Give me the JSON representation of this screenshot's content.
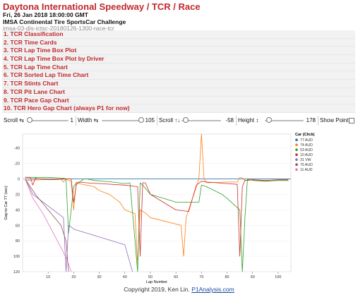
{
  "header": {
    "title": "Daytona International Speedway / TCR / Race",
    "date": "Fri, 26 Jan 2018 18:00:00 GMT",
    "series": "IMSA Continental Tire SportsCar Challenge",
    "session_id": "imsa-03-dis-ictsc-20180126-1300-race-tcr"
  },
  "menu": [
    "1. TCR Classification",
    "2. TCR Time Cards",
    "3. TCR Lap Time Box Plot",
    "4. TCR Lap Time Box Plot by Driver",
    "5. TCR Lap Time Chart",
    "6. TCR Sorted Lap Time Chart",
    "7. TCR Stints Chart",
    "8. TCR Pit Lane Chart",
    "9. TCR Pace Gap Chart",
    "10. TCR Hero Gap Chart (always P1 for now)"
  ],
  "controls": {
    "scroll_h_label": "Scroll ⇆",
    "scroll_h_value": "1",
    "width_label": "Width ⇆",
    "width_value": "105",
    "scroll_v_label": "Scroll ↑↓",
    "scroll_v_value": "-58",
    "height_label": "Height ↕",
    "height_value": "178",
    "show_points_label": "Show Points",
    "show_points_checked": false
  },
  "chart_data": {
    "type": "line",
    "xlabel": "Lap Number",
    "ylabel": "Gap to Car 77 (sec)",
    "xlim": [
      0,
      105
    ],
    "ylim": [
      -58,
      120
    ],
    "x_ticks": [
      10,
      20,
      30,
      40,
      50,
      60,
      70,
      80,
      90,
      100
    ],
    "y_ticks": [
      -40,
      -20,
      0,
      20,
      40,
      60,
      80,
      100,
      120
    ],
    "legend_title": "Car (Click)",
    "legend_position": "top-right",
    "series": [
      {
        "name": "77 AUD",
        "color": "#1f77b4",
        "x": [
          1,
          105
        ],
        "y": [
          0,
          0
        ]
      },
      {
        "name": "74 AUD",
        "color": "#ff7f0e",
        "x": [
          1,
          8,
          15,
          16,
          17,
          18,
          19,
          20,
          21,
          22,
          28,
          30,
          34,
          36,
          38,
          40,
          44,
          45,
          46,
          47,
          48,
          50,
          56,
          62,
          63,
          64,
          68,
          69,
          70,
          71,
          72,
          80,
          84,
          85,
          86,
          87,
          88,
          90,
          95,
          100,
          104
        ],
        "y": [
          2,
          1,
          0,
          4,
          0,
          2,
          3,
          40,
          4,
          6,
          10,
          15,
          20,
          25,
          30,
          40,
          45,
          110,
          40,
          42,
          44,
          50,
          55,
          60,
          100,
          50,
          10,
          0,
          -58,
          0,
          5,
          4,
          4,
          -2,
          -1,
          2,
          2,
          1,
          3,
          2,
          2
        ]
      },
      {
        "name": "53 AUD",
        "color": "#2ca02c",
        "x": [
          1,
          10,
          15,
          16,
          17,
          18,
          19,
          20,
          21,
          22,
          24,
          25,
          28,
          35,
          40,
          42,
          44,
          45,
          46,
          47,
          50,
          60,
          62,
          64,
          69,
          70,
          72,
          78,
          80,
          85,
          86,
          87,
          88,
          90,
          95,
          100,
          104
        ],
        "y": [
          -2,
          -2,
          -1,
          -1,
          0,
          70,
          40,
          10,
          5,
          5,
          0,
          0,
          2,
          4,
          6,
          5,
          80,
          135,
          5,
          8,
          20,
          30,
          30,
          30,
          30,
          8,
          10,
          20,
          25,
          40,
          125,
          50,
          0,
          2,
          3,
          2,
          2
        ]
      },
      {
        "name": "10 AUD",
        "color": "#d62728",
        "x": [
          1,
          3,
          4,
          5,
          6,
          12,
          18,
          19,
          20,
          21,
          22,
          25,
          30,
          40,
          45,
          46,
          47,
          48,
          50,
          55,
          60,
          65,
          68,
          70,
          72,
          80,
          84,
          85,
          86,
          87,
          90,
          95,
          100,
          104
        ],
        "y": [
          -2,
          -2,
          8,
          -1,
          0,
          1,
          0,
          0,
          30,
          8,
          4,
          5,
          6,
          8,
          10,
          100,
          5,
          5,
          20,
          30,
          40,
          42,
          8,
          3,
          4,
          6,
          7,
          100,
          10,
          2,
          1,
          2,
          1,
          1
        ]
      },
      {
        "name": "31 VW",
        "color": "#9467bd",
        "x": [
          1,
          4,
          8,
          12,
          16,
          17,
          18,
          19,
          20,
          25,
          30,
          35,
          40,
          43
        ],
        "y": [
          0,
          20,
          30,
          40,
          50,
          150,
          60,
          62,
          65,
          70,
          75,
          80,
          85,
          140
        ]
      },
      {
        "name": "75 AUD",
        "color": "#8c564b",
        "x": [
          1,
          5,
          10,
          15,
          17,
          18
        ],
        "y": [
          0,
          20,
          40,
          60,
          80,
          150
        ]
      },
      {
        "name": "11 AUD",
        "color": "#e377c2",
        "x": [
          1,
          4,
          8,
          12,
          16,
          18,
          19
        ],
        "y": [
          0,
          25,
          45,
          70,
          95,
          110,
          150
        ]
      }
    ]
  },
  "footer": {
    "copyright": "Copyright 2019, Ken Lin.",
    "link": "P1Analysis.com"
  }
}
